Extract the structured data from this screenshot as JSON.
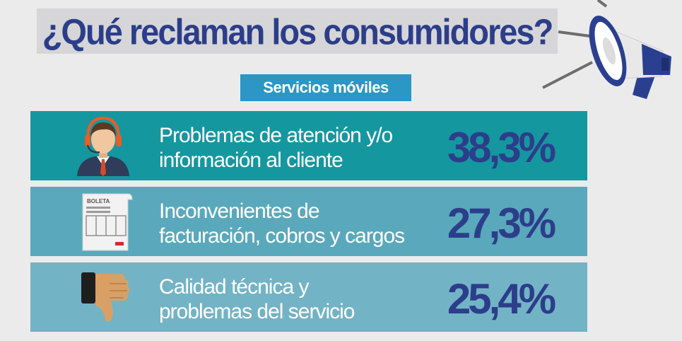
{
  "title": "¿Qué reclaman los consumidores?",
  "subtitle": "Servicios móviles",
  "rows": [
    {
      "line1": "Problemas de atención y/o",
      "line2": "información al cliente",
      "percent": "38,3%",
      "icon": "call-center-agent-icon",
      "bg": "#1597a0"
    },
    {
      "line1": "Inconvenientes de",
      "line2": "facturación, cobros y cargos",
      "percent": "27,3%",
      "icon": "receipt-icon",
      "receipt_label": "BOLETA",
      "bg": "#5aa8bb"
    },
    {
      "line1": "Calidad técnica y",
      "line2": "problemas del servicio",
      "percent": "25,4%",
      "icon": "thumbs-down-icon",
      "bg": "#73b3c6"
    }
  ],
  "colors": {
    "accent": "#2c3e8a",
    "subtitle_bg": "#2a97c4",
    "page_bg": "#ebebeb"
  }
}
